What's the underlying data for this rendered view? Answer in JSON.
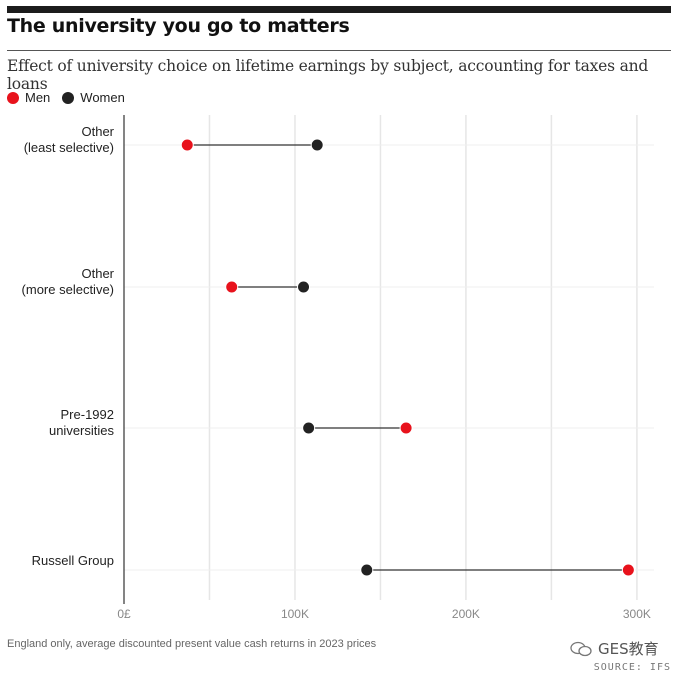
{
  "header": {
    "title": "The university you go to matters",
    "subtitle": "Effect of university choice on lifetime earnings by subject, accounting for taxes and loans"
  },
  "colors": {
    "men": "#e8121c",
    "women": "#222222",
    "grid": "#e6e6e6",
    "connector": "#333333"
  },
  "chart_data": {
    "type": "dumbbell",
    "categories": [
      [
        "Other",
        "(least selective)"
      ],
      [
        "Other",
        "(more selective)"
      ],
      [
        "Pre-1992",
        "universities"
      ],
      [
        "Russell Group"
      ]
    ],
    "series": [
      {
        "name": "Men",
        "values": [
          37000,
          63000,
          165000,
          295000
        ]
      },
      {
        "name": "Women",
        "values": [
          113000,
          105000,
          108000,
          142000
        ]
      }
    ],
    "xlim": [
      0,
      310000
    ],
    "xticks": [
      0,
      100000,
      200000,
      300000
    ],
    "xtick_labels": [
      "0£",
      "100K",
      "200K",
      "300K"
    ],
    "grid_every": 50000,
    "legend": "top-left"
  },
  "footer": {
    "note": "England only, average discounted present value cash returns in 2023 prices",
    "source": "SOURCE: IFS",
    "watermark": "GES教育"
  }
}
